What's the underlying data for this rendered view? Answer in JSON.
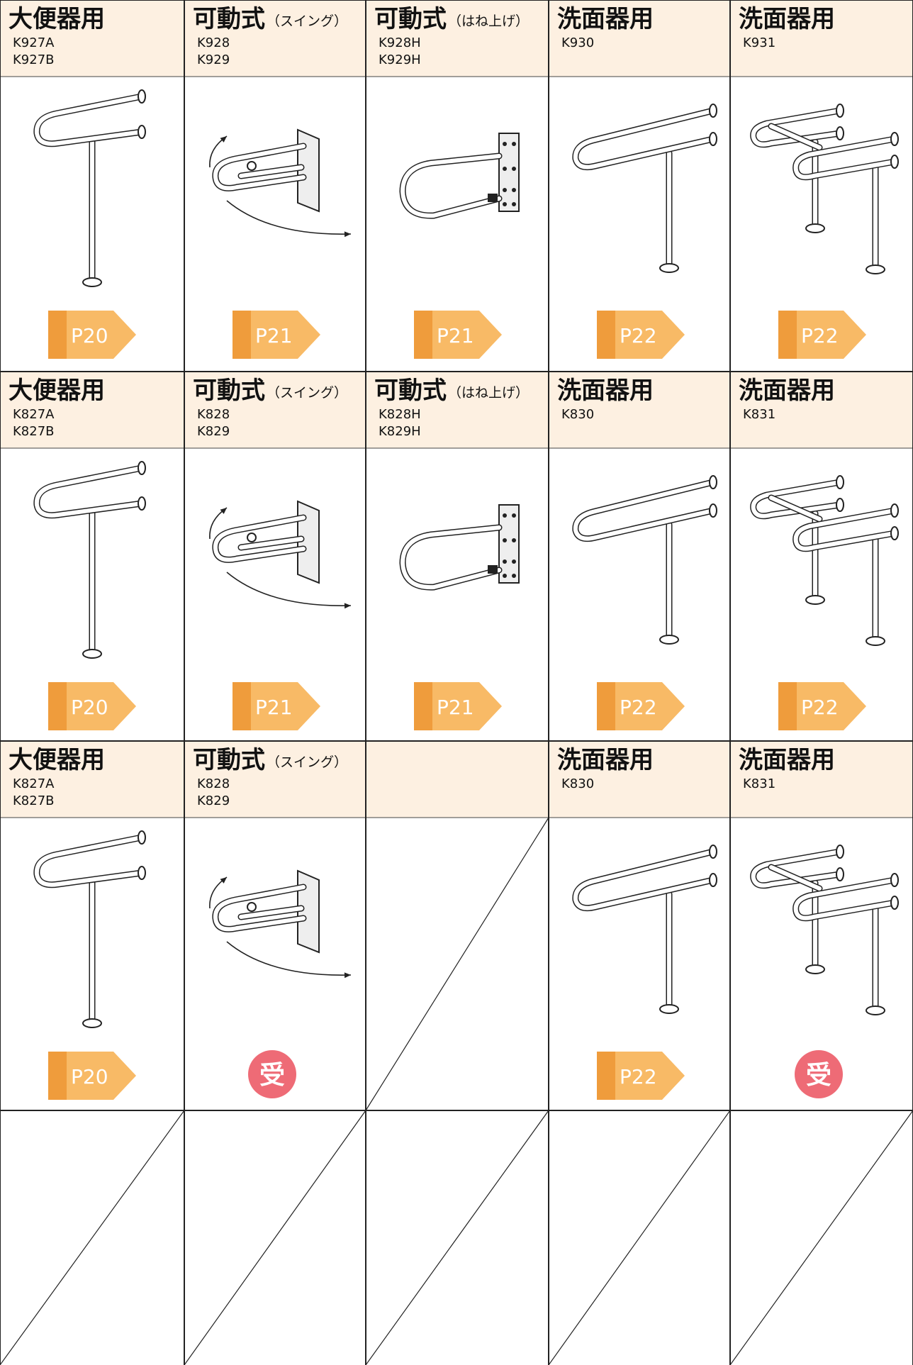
{
  "rows": [
    {
      "cells": [
        {
          "title": "大便器用",
          "codes": [
            "K927A",
            "K927B"
          ],
          "page": "P20"
        },
        {
          "title": "可動式",
          "note": "（スイング）",
          "codes": [
            "K928",
            "K929"
          ],
          "page": "P21"
        },
        {
          "title": "可動式",
          "note": "（はね上げ）",
          "codes": [
            "K928H",
            "K929H"
          ],
          "page": "P21"
        },
        {
          "title": "洗面器用",
          "codes": [
            "K930"
          ],
          "page": "P22"
        },
        {
          "title": "洗面器用",
          "codes": [
            "K931"
          ],
          "page": "P22"
        }
      ]
    },
    {
      "cells": [
        {
          "title": "大便器用",
          "codes": [
            "K827A",
            "K827B"
          ],
          "page": "P20"
        },
        {
          "title": "可動式",
          "note": "（スイング）",
          "codes": [
            "K828",
            "K829"
          ],
          "page": "P21"
        },
        {
          "title": "可動式",
          "note": "（はね上げ）",
          "codes": [
            "K828H",
            "K829H"
          ],
          "page": "P21"
        },
        {
          "title": "洗面器用",
          "codes": [
            "K830"
          ],
          "page": "P22"
        },
        {
          "title": "洗面器用",
          "codes": [
            "K831"
          ],
          "page": "P22"
        }
      ]
    },
    {
      "cells": [
        {
          "title": "大便器用",
          "codes": [
            "K827A",
            "K827B"
          ],
          "page": "P20"
        },
        {
          "title": "可動式",
          "note": "（スイング）",
          "codes": [
            "K828",
            "K829"
          ],
          "badge": "受"
        },
        null,
        {
          "title": "洗面器用",
          "codes": [
            "K830"
          ],
          "page": "P22"
        },
        {
          "title": "洗面器用",
          "codes": [
            "K831"
          ],
          "badge": "受"
        }
      ]
    },
    {
      "cells": [
        null,
        null,
        null,
        null,
        null
      ]
    }
  ]
}
